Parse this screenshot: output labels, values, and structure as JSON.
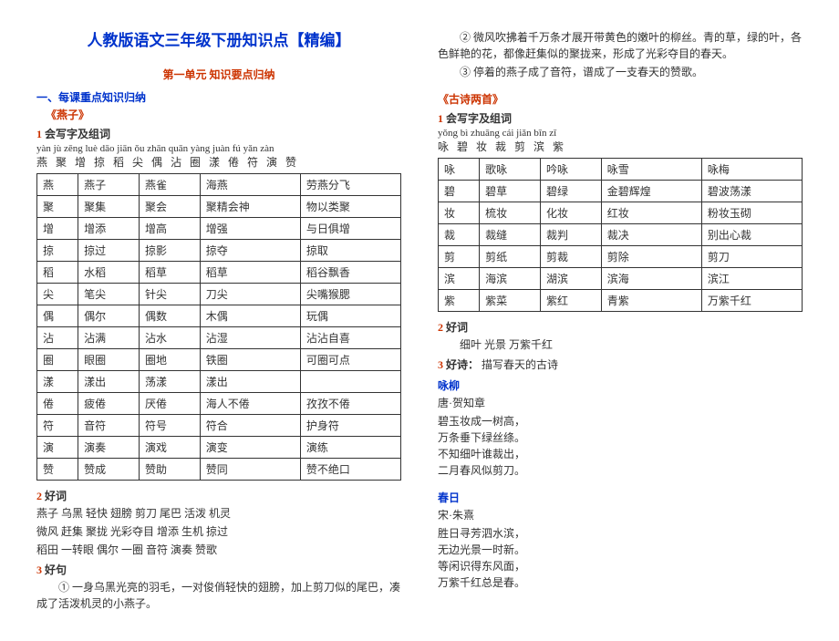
{
  "title": "人教版语文三年级下册知识点【精编】",
  "unitHead": "第一单元 知识要点归纳",
  "secHead1": "一、每课重点知识归纳",
  "yanzi": {
    "title": "《燕子》",
    "zx": {
      "n": "1",
      "t": "会写字及组词"
    },
    "pinyin": "yàn jù zēng  luè dāo  jiān ǒu  zhān quān  yàng  juàn fú yǎn  zàn",
    "chars": "燕 聚 增   掠 稻   尖 偶 沾    圈    漾   倦 符 演 赞",
    "table": {
      "cols": 5,
      "rows": [
        [
          "燕",
          "燕子",
          "燕雀",
          "海燕",
          "劳燕分飞"
        ],
        [
          "聚",
          "聚集",
          "聚会",
          "聚精会神",
          "物以类聚"
        ],
        [
          "增",
          "增添",
          "增高",
          "增强",
          "与日俱增"
        ],
        [
          "掠",
          "掠过",
          "掠影",
          "掠夺",
          "掠取"
        ],
        [
          "稻",
          "水稻",
          "稻草",
          "稻草",
          "稻谷飘香"
        ],
        [
          "尖",
          "笔尖",
          "针尖",
          "刀尖",
          "尖嘴猴腮"
        ],
        [
          "偶",
          "偶尔",
          "偶数",
          "木偶",
          "玩偶"
        ],
        [
          "沾",
          "沾满",
          "沾水",
          "沾湿",
          "沾沾自喜"
        ],
        [
          "圈",
          "眼圈",
          "圈地",
          "铁圈",
          "可圈可点"
        ],
        [
          "漾",
          "漾出",
          "荡漾",
          "漾出",
          ""
        ],
        [
          "倦",
          "疲倦",
          "厌倦",
          "海人不倦",
          "孜孜不倦"
        ],
        [
          "符",
          "音符",
          "符号",
          "符合",
          "护身符"
        ],
        [
          "演",
          "演奏",
          "演戏",
          "演变",
          "演练"
        ],
        [
          "赞",
          "赞成",
          "赞助",
          "赞同",
          "赞不绝口"
        ]
      ]
    },
    "hc": {
      "n": "2",
      "t": "好词"
    },
    "hcLines": [
      "燕子 乌黑 轻快 翅膀 剪刀 尾巴 活泼 机灵",
      "微风 赶集 聚拢 光彩夺目 增添 生机 掠过",
      "稻田 一转眼 偶尔 一圈 音符 演奏 赞歌"
    ],
    "hj": {
      "n": "3",
      "t": "好句"
    },
    "hjLines": [
      "① 一身乌黑光亮的羽毛，一对俊俏轻快的翅膀，加上剪刀似的尾巴，凑成了活泼机灵的小燕子。",
      "② 微风吹拂着千万条才展开带黄色的嫩叶的柳丝。青的草，绿的叶，各色鲜艳的花，都像赶集似的聚拢来，形成了光彩夺目的春天。",
      "③ 停着的燕子成了音符，谱成了一支春天的赞歌。"
    ]
  },
  "gushi": {
    "title": "《古诗两首》",
    "zx": {
      "n": "1",
      "t": "会写字及组词"
    },
    "pinyin": "yǒng  bì  zhuāng  cái  jiǎn  bīn zǐ",
    "chars": "咏   碧   妆    裁   剪   滨 紫",
    "table": {
      "cols": 5,
      "rows": [
        [
          "咏",
          "歌咏",
          "吟咏",
          "咏雪",
          "咏梅"
        ],
        [
          "碧",
          "碧草",
          "碧绿",
          "金碧辉煌",
          "碧波荡漾"
        ],
        [
          "妆",
          "梳妆",
          "化妆",
          "红妆",
          "粉妆玉砌"
        ],
        [
          "裁",
          "裁缝",
          "裁判",
          "裁决",
          "别出心裁"
        ],
        [
          "剪",
          "剪纸",
          "剪裁",
          "剪除",
          "剪刀"
        ],
        [
          "滨",
          "海滨",
          "湖滨",
          "滨海",
          "滨江"
        ],
        [
          "紫",
          "紫菜",
          "紫红",
          "青紫",
          "万紫千红"
        ]
      ]
    },
    "hc": {
      "n": "2",
      "t": "好词"
    },
    "hcLines": [
      "细叶 光景 万紫千红"
    ],
    "hs": {
      "n": "3",
      "t": "好诗：",
      "extra": "描写春天的古诗"
    },
    "poems": [
      {
        "title": "咏柳",
        "author": "唐·贺知章",
        "lines": [
          "碧玉妆成一树高，",
          "万条垂下绿丝绦。",
          "不知细叶谁裁出，",
          "二月春风似剪刀。"
        ]
      },
      {
        "title": "春日",
        "author": "宋·朱熹",
        "lines": [
          "胜日寻芳泗水滨，",
          "无边光景一时新。",
          "等闲识得东风面，",
          "万紫千红总是春。"
        ]
      }
    ]
  }
}
